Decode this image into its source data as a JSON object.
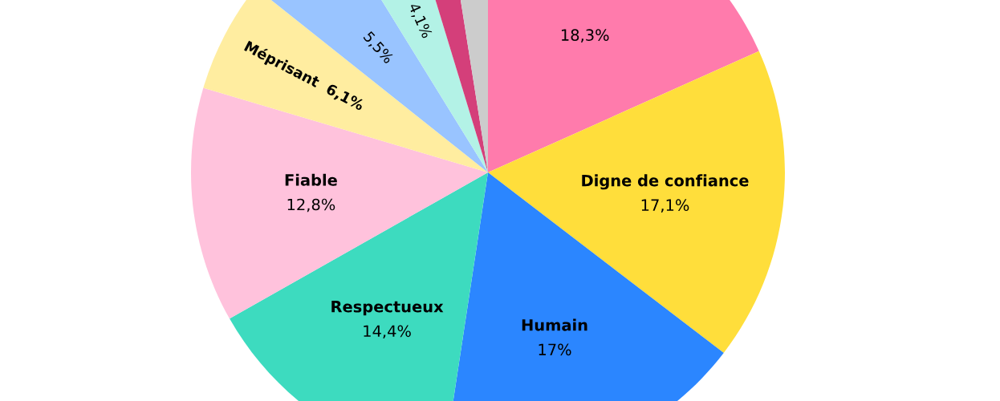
{
  "chart_data": {
    "type": "pie",
    "categories": [
      null,
      "Digne de confiance",
      "Humain",
      "Respectueux",
      "Fiable",
      "Méprisant",
      null,
      null,
      null,
      null
    ],
    "values": [
      18.3,
      17.1,
      17,
      14.4,
      12.8,
      6.1,
      5.5,
      4.1,
      2.2,
      2.5
    ],
    "value_labels": [
      "18,3%",
      "17,1%",
      "17%",
      "14,4%",
      "12,8%",
      "6,1%",
      "5,5%",
      "4,1%",
      null,
      null
    ],
    "colors": [
      "#ff7bac",
      "#ffde3b",
      "#2b86ff",
      "#3ddbbf",
      "#ffc2dc",
      "#ffeda0",
      "#99c4ff",
      "#b3f2e6",
      "#d43f7a",
      "#cccccc"
    ]
  }
}
